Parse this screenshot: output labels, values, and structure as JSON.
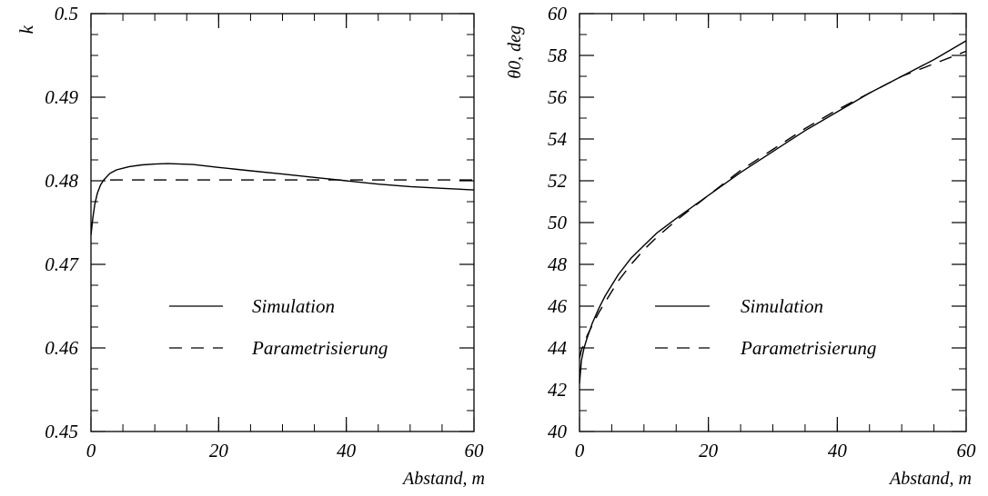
{
  "chart_data": [
    {
      "type": "line",
      "xlabel": "Abstand, m",
      "ylabel": "k",
      "xlim": [
        0,
        60
      ],
      "ylim": [
        0.45,
        0.5
      ],
      "xticks": [
        0,
        20,
        40,
        60
      ],
      "xtick_labels": [
        "0",
        "20",
        "40",
        "60"
      ],
      "yticks": [
        0.45,
        0.46,
        0.47,
        0.48,
        0.49,
        0.5
      ],
      "ytick_labels": [
        "0.45",
        "0.46",
        "0.47",
        "0.48",
        "0.49",
        "0.5"
      ],
      "x_minor_step": 5,
      "y_minor_step": 0.0025,
      "grid": false,
      "legend": "center",
      "series": [
        {
          "name": "Simulation",
          "style": "solid",
          "x": [
            0,
            0.3,
            0.6,
            1,
            1.5,
            2,
            3,
            4,
            5,
            6,
            8,
            10,
            12,
            14,
            16,
            20,
            25,
            30,
            35,
            40,
            45,
            50,
            55,
            60
          ],
          "y": [
            0.4735,
            0.4756,
            0.4772,
            0.4785,
            0.4795,
            0.4801,
            0.4809,
            0.4813,
            0.4815,
            0.4817,
            0.4819,
            0.482,
            0.48205,
            0.482,
            0.48195,
            0.4816,
            0.4812,
            0.4808,
            0.4804,
            0.48,
            0.4796,
            0.4793,
            0.4791,
            0.4789
          ]
        },
        {
          "name": "Parametrisierung",
          "style": "dashed",
          "x": [
            3,
            60
          ],
          "y": [
            0.4801,
            0.4801
          ]
        }
      ]
    },
    {
      "type": "line",
      "xlabel": "Abstand, m",
      "ylabel": "θ0, deg",
      "xlim": [
        0,
        60
      ],
      "ylim": [
        40,
        60
      ],
      "xticks": [
        0,
        20,
        40,
        60
      ],
      "xtick_labels": [
        "0",
        "20",
        "40",
        "60"
      ],
      "yticks": [
        40,
        42,
        44,
        46,
        48,
        50,
        52,
        54,
        56,
        58,
        60
      ],
      "ytick_labels": [
        "40",
        "42",
        "44",
        "46",
        "48",
        "50",
        "52",
        "54",
        "56",
        "58",
        "60"
      ],
      "x_minor_step": 5,
      "y_minor_step": 1,
      "grid": false,
      "legend": "bottom-center",
      "series": [
        {
          "name": "Simulation",
          "style": "solid",
          "x": [
            0,
            0.3,
            0.7,
            1.2,
            2,
            3,
            4,
            5,
            6,
            8,
            10,
            12,
            15,
            20,
            25,
            30,
            35,
            40,
            45,
            50,
            55,
            60
          ],
          "y": [
            42.3,
            43.4,
            44.0,
            44.5,
            45.2,
            45.9,
            46.5,
            47.0,
            47.5,
            48.3,
            48.9,
            49.5,
            50.2,
            51.3,
            52.4,
            53.4,
            54.4,
            55.3,
            56.2,
            57.0,
            57.8,
            58.7
          ]
        },
        {
          "name": "Parametrisierung",
          "style": "dashed",
          "x": [
            0,
            0.3,
            0.7,
            1.2,
            2,
            3,
            4,
            5,
            6,
            8,
            10,
            12,
            15,
            20,
            25,
            30,
            35,
            40,
            45,
            50,
            55,
            60
          ],
          "y": [
            43.5,
            43.9,
            44.2,
            44.6,
            45.1,
            45.7,
            46.2,
            46.7,
            47.2,
            48.0,
            48.7,
            49.3,
            50.1,
            51.3,
            52.5,
            53.5,
            54.5,
            55.4,
            56.2,
            57.0,
            57.6,
            58.2
          ]
        }
      ]
    }
  ]
}
